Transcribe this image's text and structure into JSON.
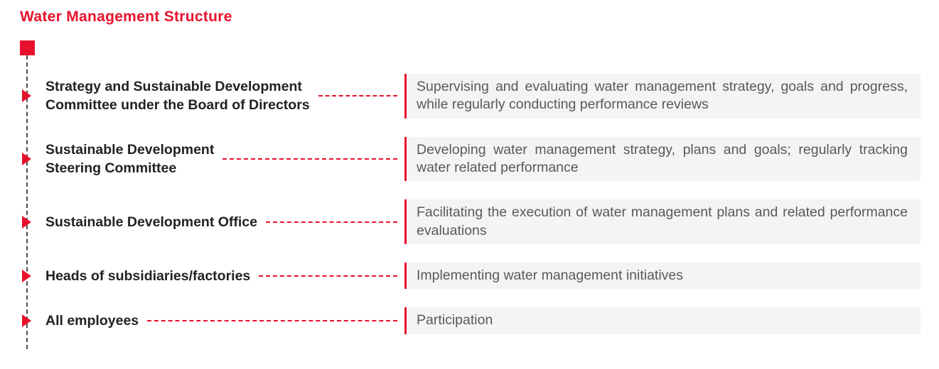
{
  "header": {
    "title": "Water Management Structure"
  },
  "colors": {
    "accent_red": "#e8112d",
    "box_background": "#f4f4f4",
    "description_text": "#58595b",
    "spine_line": "#4a4a4a"
  },
  "rows": [
    {
      "title": "Strategy and Sustainable Development\nCommittee under the Board of Directors",
      "description": "Supervising and evaluating water management strategy, goals and progress, while regularly conducting performance reviews"
    },
    {
      "title": "Sustainable Development\nSteering Committee",
      "description": "Developing water management strategy, plans and goals; regularly tracking water related performance"
    },
    {
      "title": "Sustainable Development Office",
      "description": "Facilitating the execution of water management plans and related performance evaluations"
    },
    {
      "title": "Heads of subsidiaries/factories",
      "description": "Implementing water management initiatives"
    },
    {
      "title": "All employees",
      "description": "Participation"
    }
  ]
}
